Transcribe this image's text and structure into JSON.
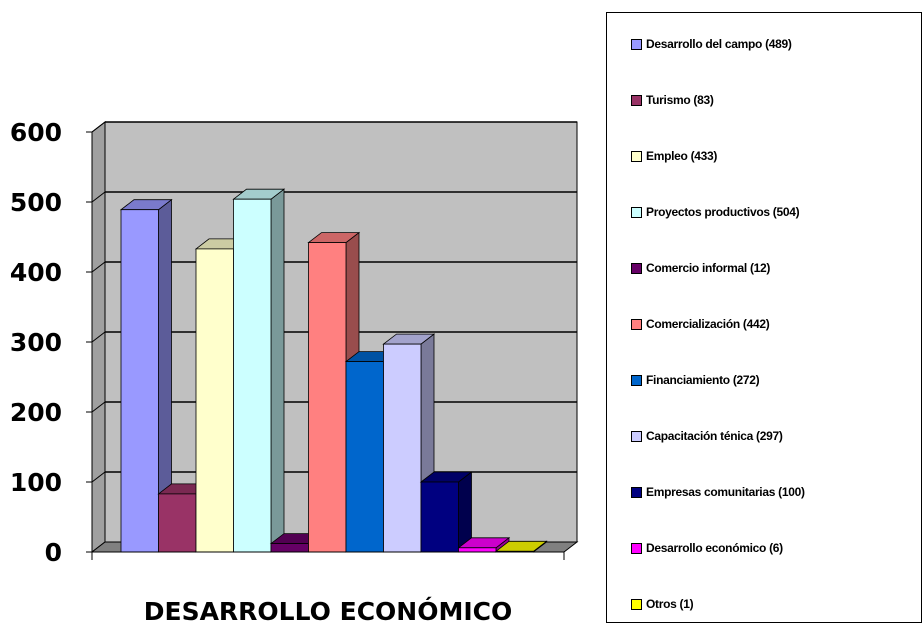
{
  "chart_data": {
    "type": "bar",
    "xlabel": "DESARROLLO ECONÓMICO",
    "ylim": [
      0,
      600
    ],
    "yticks": [
      "0",
      "100",
      "200",
      "300",
      "400",
      "500",
      "600"
    ],
    "grid": true,
    "legend_position": "right",
    "series": [
      {
        "name": "Desarrollo del campo (489)",
        "value": 489,
        "color": "#9999ff"
      },
      {
        "name": "Turismo (83)",
        "value": 83,
        "color": "#993366"
      },
      {
        "name": "Empleo (433)",
        "value": 433,
        "color": "#ffffcc"
      },
      {
        "name": "Proyectos productivos (504)",
        "value": 504,
        "color": "#ccffff"
      },
      {
        "name": "Comercio informal (12)",
        "value": 12,
        "color": "#660066"
      },
      {
        "name": "Comercialización (442)",
        "value": 442,
        "color": "#ff8080"
      },
      {
        "name": "Financiamiento (272)",
        "value": 272,
        "color": "#0066cc"
      },
      {
        "name": "Capacitación ténica (297)",
        "value": 297,
        "color": "#ccccff"
      },
      {
        "name": "Empresas comunitarias (100)",
        "value": 100,
        "color": "#000080"
      },
      {
        "name": "Desarrollo económico (6)",
        "value": 6,
        "color": "#ff00ff"
      },
      {
        "name": "Otros (1)",
        "value": 1,
        "color": "#ffff00"
      }
    ],
    "colors": {
      "plot_wall": "#c0c0c0",
      "side_wall": "#a0a0a0",
      "floor": "#808080",
      "gridline": "#000000"
    }
  }
}
